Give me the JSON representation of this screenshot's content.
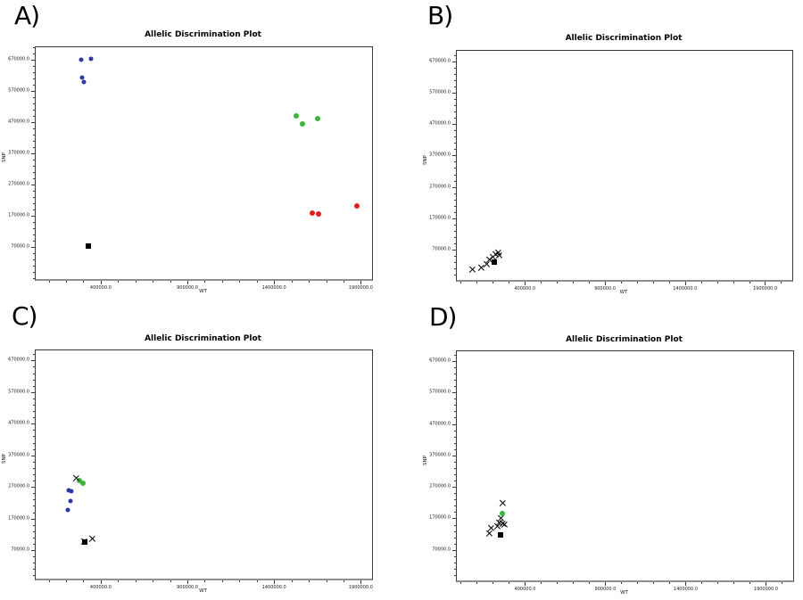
{
  "chart_data": [
    {
      "panel_letter": "A)",
      "type": "scatter",
      "title": "Allelic Discrimination Plot",
      "xlabel": "WT",
      "ylabel": "SNP",
      "xlim": [
        25000,
        1965000
      ],
      "ylim": [
        -33000,
        710000
      ],
      "x_minor_step": 100000,
      "y_minor_step": 20000,
      "x_ticks": [
        {
          "value": 400000,
          "label": "400000.0"
        },
        {
          "value": 900000,
          "label": "900000.0"
        },
        {
          "value": 1400000,
          "label": "1400000.0"
        },
        {
          "value": 1900000,
          "label": "1900000.0"
        }
      ],
      "y_ticks": [
        {
          "value": 670000,
          "label": "670000.0"
        },
        {
          "value": 570000,
          "label": "570000.0"
        },
        {
          "value": 470000,
          "label": "470000.0"
        },
        {
          "value": 370000,
          "label": "370000.0"
        },
        {
          "value": 270000,
          "label": "270000.0"
        },
        {
          "value": 170000,
          "label": "170000.0"
        },
        {
          "value": 70000,
          "label": "70000.0"
        }
      ],
      "series": [
        {
          "name": "blue-circle-series",
          "marker": "circle",
          "color": "#2b38a6",
          "size": 5,
          "points": [
            [
              289000,
              671000
            ],
            [
              343000,
              672000
            ],
            [
              294000,
              613000
            ],
            [
              304000,
              599000
            ]
          ]
        },
        {
          "name": "green-circle-series",
          "marker": "circle",
          "color": "#3ab53a",
          "size": 6,
          "points": [
            [
              1526000,
              490000
            ],
            [
              1651000,
              481000
            ],
            [
              1564000,
              465000
            ]
          ]
        },
        {
          "name": "red-circle-series",
          "marker": "circle",
          "color": "#e32020",
          "size": 6,
          "points": [
            [
              1619000,
              179000
            ],
            [
              1656000,
              177000
            ],
            [
              1876000,
              201000
            ]
          ]
        },
        {
          "name": "black-square-series",
          "marker": "square",
          "color": "#000000",
          "size": 6,
          "points": [
            [
              331000,
              73000
            ]
          ]
        }
      ]
    },
    {
      "panel_letter": "B)",
      "type": "scatter",
      "title": "Allelic Discrimination Plot",
      "xlabel": "WT",
      "ylabel": "SNP",
      "xlim": [
        -25000,
        2070000
      ],
      "ylim": [
        -26000,
        703000
      ],
      "x_minor_step": 100000,
      "y_minor_step": 20000,
      "x_ticks": [
        {
          "value": 400000,
          "label": "400000.0"
        },
        {
          "value": 900000,
          "label": "900000.0"
        },
        {
          "value": 1400000,
          "label": "1400000.0"
        },
        {
          "value": 1900000,
          "label": "1900000.0"
        }
      ],
      "y_ticks": [
        {
          "value": 670000,
          "label": "670000.0"
        },
        {
          "value": 570000,
          "label": "570000.0"
        },
        {
          "value": 470000,
          "label": "470000.0"
        },
        {
          "value": 370000,
          "label": "370000.0"
        },
        {
          "value": 270000,
          "label": "270000.0"
        },
        {
          "value": 170000,
          "label": "170000.0"
        },
        {
          "value": 70000,
          "label": "70000.0"
        }
      ],
      "series": [
        {
          "name": "black-x-series",
          "marker": "x",
          "color": "#000000",
          "size": 7,
          "points": [
            [
              75000,
              8000
            ],
            [
              129000,
              12000
            ],
            [
              159000,
              25000
            ],
            [
              181000,
              37000
            ],
            [
              203000,
              46000
            ],
            [
              218000,
              55000
            ],
            [
              233000,
              60000
            ],
            [
              242000,
              51000
            ]
          ]
        },
        {
          "name": "black-square-series",
          "marker": "square",
          "color": "#000000",
          "size": 6,
          "points": [
            [
              209000,
              32000
            ]
          ]
        }
      ]
    },
    {
      "panel_letter": "C)",
      "type": "scatter",
      "title": "Allelic Discrimination Plot",
      "xlabel": "WT",
      "ylabel": "SNP",
      "xlim": [
        25000,
        1965000
      ],
      "ylim": [
        -20000,
        702000
      ],
      "x_minor_step": 100000,
      "y_minor_step": 20000,
      "x_ticks": [
        {
          "value": 400000,
          "label": "400000.0"
        },
        {
          "value": 900000,
          "label": "900000.0"
        },
        {
          "value": 1400000,
          "label": "1400000.0"
        },
        {
          "value": 1900000,
          "label": "1900000.0"
        }
      ],
      "y_ticks": [
        {
          "value": 670000,
          "label": "670000.0"
        },
        {
          "value": 570000,
          "label": "570000.0"
        },
        {
          "value": 470000,
          "label": "470000.0"
        },
        {
          "value": 370000,
          "label": "370000.0"
        },
        {
          "value": 270000,
          "label": "270000.0"
        },
        {
          "value": 170000,
          "label": "170000.0"
        },
        {
          "value": 70000,
          "label": "70000.0"
        }
      ],
      "series": [
        {
          "name": "blue-circle-series",
          "marker": "circle",
          "color": "#2b38a6",
          "size": 5,
          "points": [
            [
              209000,
              198000
            ],
            [
              226000,
              224000
            ],
            [
              216000,
              260000
            ],
            [
              229000,
              255000
            ]
          ]
        },
        {
          "name": "green-circle-series",
          "marker": "circle",
          "color": "#3ab53a",
          "size": 6,
          "points": [
            [
              277000,
              289000
            ],
            [
              297000,
              283000
            ]
          ]
        },
        {
          "name": "black-square-series",
          "marker": "square",
          "color": "#000000",
          "size": 6,
          "points": [
            [
              310000,
              95000
            ]
          ]
        },
        {
          "name": "black-x-series",
          "marker": "x",
          "color": "#000000",
          "size": 7,
          "points": [
            [
              259000,
              297000
            ],
            [
              308000,
              98000
            ],
            [
              350000,
              106000
            ]
          ]
        }
      ]
    },
    {
      "panel_letter": "D)",
      "type": "scatter",
      "title": "Allelic Discrimination Plot",
      "xlabel": "WT",
      "ylabel": "SNP",
      "xlim": [
        -25000,
        2070000
      ],
      "ylim": [
        -27000,
        701000
      ],
      "x_minor_step": 100000,
      "y_minor_step": 20000,
      "x_ticks": [
        {
          "value": 400000,
          "label": "400000.0"
        },
        {
          "value": 900000,
          "label": "900000.0"
        },
        {
          "value": 1400000,
          "label": "1400000.0"
        },
        {
          "value": 1900000,
          "label": "1900000.0"
        }
      ],
      "y_ticks": [
        {
          "value": 670000,
          "label": "670000.0"
        },
        {
          "value": 570000,
          "label": "570000.0"
        },
        {
          "value": 470000,
          "label": "470000.0"
        },
        {
          "value": 370000,
          "label": "370000.0"
        },
        {
          "value": 270000,
          "label": "270000.0"
        },
        {
          "value": 170000,
          "label": "170000.0"
        },
        {
          "value": 70000,
          "label": "70000.0"
        }
      ],
      "series": [
        {
          "name": "black-x-series",
          "marker": "x",
          "color": "#000000",
          "size": 7,
          "points": [
            [
              260000,
              217000
            ],
            [
              251000,
              171000
            ],
            [
              241000,
              157000
            ],
            [
              260000,
              154000
            ],
            [
              274000,
              151000
            ],
            [
              228000,
              145000
            ],
            [
              189000,
              138000
            ],
            [
              178000,
              122000
            ]
          ]
        },
        {
          "name": "green-circle-series",
          "marker": "circle",
          "color": "#3ab53a",
          "size": 6,
          "points": [
            [
              260000,
              186000
            ]
          ]
        },
        {
          "name": "black-square-series",
          "marker": "square",
          "color": "#000000",
          "size": 6,
          "points": [
            [
              247000,
              117000
            ]
          ]
        }
      ]
    }
  ]
}
